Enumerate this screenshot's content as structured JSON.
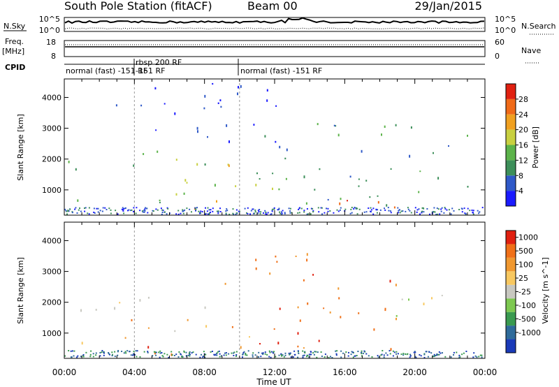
{
  "header": {
    "station": "South Pole Station (fitACF)",
    "beam": "Beam 00",
    "date": "29/Jan/2015"
  },
  "noise_panel": {
    "left_label": "N.Sky",
    "right_label": "N.Search",
    "left_ticks": [
      "10^5",
      "10^0"
    ],
    "right_ticks": [
      "10^5",
      "10^0"
    ]
  },
  "freq_panel": {
    "left_label_1": "Freq.",
    "left_label_2": "[MHz]",
    "right_label": "Nave",
    "left_ticks": [
      "18",
      "8"
    ],
    "right_ticks": [
      "60",
      "0"
    ]
  },
  "cpid_panel": {
    "label": "CPID",
    "segments": [
      {
        "label": "normal (fast) -151 RF",
        "start_hour": 0.0,
        "end_hour": 4.0
      },
      {
        "label": "rbsp 200 RF",
        "start_hour": 4.0,
        "end_hour": 10.0
      },
      {
        "label": "-151 RF",
        "start_hour": 4.0,
        "end_hour": 10.0
      },
      {
        "label": "normal (fast) -151 RF",
        "start_hour": 10.0,
        "end_hour": 24.0
      }
    ]
  },
  "chart_data": [
    {
      "type": "heatmap",
      "panel": "power",
      "ylabel": "Slant Range [km]",
      "ylim": [
        180,
        4600
      ],
      "yticks": [
        1000,
        2000,
        3000,
        4000
      ],
      "xlim": [
        0,
        24
      ],
      "colorbar_label": "Power [dB]",
      "colorbar_ticks": [
        "4",
        "8",
        "12",
        "16",
        "20",
        "24",
        "28"
      ],
      "colorbar_colors": [
        "#1a1aff",
        "#2f59c8",
        "#3d8f5a",
        "#5cb34a",
        "#c8d040",
        "#f0a020",
        "#f06a18",
        "#e02010"
      ],
      "scatter_regions": [
        {
          "x0": 0.0,
          "x1": 9.8,
          "y0": 1700,
          "y1": 2300,
          "level": 3
        },
        {
          "x0": 3.0,
          "x1": 9.5,
          "y0": 1850,
          "y1": 2150,
          "level": 5
        },
        {
          "x0": 0.3,
          "x1": 9.0,
          "y0": 600,
          "y1": 1000,
          "level": 3
        },
        {
          "x0": 7.0,
          "x1": 19.0,
          "y0": 300,
          "y1": 700,
          "level": 6
        },
        {
          "x0": 16.5,
          "x1": 18.0,
          "y0": 600,
          "y1": 1100,
          "level": 6
        },
        {
          "x0": 6.0,
          "x1": 12.0,
          "y0": 700,
          "y1": 1900,
          "level": 4
        },
        {
          "x0": 10.5,
          "x1": 23.5,
          "y0": 500,
          "y1": 3200,
          "level": 2
        },
        {
          "x0": 2.0,
          "x1": 13.0,
          "y0": 2400,
          "y1": 4500,
          "level": 0
        }
      ]
    },
    {
      "type": "heatmap",
      "panel": "velocity",
      "ylabel": "Slant Range [km]",
      "ylim": [
        180,
        4600
      ],
      "yticks": [
        1000,
        2000,
        3000,
        4000
      ],
      "xlim": [
        0,
        24
      ],
      "xlabel": "Time UT",
      "xticks": [
        "00:00",
        "04:00",
        "08:00",
        "12:00",
        "16:00",
        "20:00",
        "00:00"
      ],
      "colorbar_label": "Velocity [m s^-1]",
      "colorbar_ticks": [
        "1000",
        "500",
        "100",
        "25",
        "-25",
        "-100",
        "-500",
        "-1000"
      ],
      "colorbar_colors": [
        "#1a3ab8",
        "#2f6b9a",
        "#3a9a50",
        "#7dc850",
        "#c8c8c0",
        "#f8c860",
        "#f09830",
        "#f07018",
        "#e02010"
      ],
      "scatter_regions": [
        {
          "x0": 0.0,
          "x1": 10.0,
          "y0": 1700,
          "y1": 2300,
          "level": 4
        },
        {
          "x0": 4.0,
          "x1": 19.0,
          "y0": 300,
          "y1": 700,
          "level": 7
        },
        {
          "x0": 3.0,
          "x1": 12.0,
          "y0": 700,
          "y1": 1500,
          "level": 6
        },
        {
          "x0": 12.0,
          "x1": 20.0,
          "y0": 500,
          "y1": 3000,
          "level": 7
        },
        {
          "x0": 0.3,
          "x1": 3.0,
          "y0": 600,
          "y1": 1000,
          "level": 5
        },
        {
          "x0": 18.0,
          "x1": 23.5,
          "y0": 1500,
          "y1": 2400,
          "level": 4
        },
        {
          "x0": 8.0,
          "x1": 14.0,
          "y0": 2500,
          "y1": 3800,
          "level": 6
        },
        {
          "x0": 5.5,
          "x1": 7.5,
          "y0": 800,
          "y1": 1100,
          "level": 3
        }
      ]
    }
  ]
}
